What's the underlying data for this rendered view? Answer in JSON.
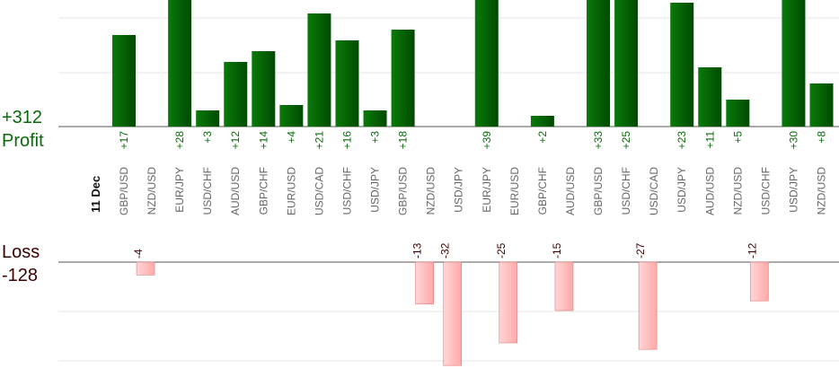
{
  "summary": {
    "profit_total": "+312",
    "profit_label": "Profit",
    "loss_label": "Loss",
    "loss_total": "-128"
  },
  "chart_data": {
    "type": "bar",
    "date_label": "11 Dec",
    "categories": [
      "GBP/USD",
      "NZD/USD",
      "EUR/JPY",
      "USD/CHF",
      "AUD/USD",
      "GBP/CHF",
      "EUR/USD",
      "USD/CAD",
      "USD/CHF",
      "USD/JPY",
      "GBP/USD",
      "NZD/USD",
      "USD/JPY",
      "EUR/JPY",
      "EUR/USD",
      "GBP/CHF",
      "AUD/USD",
      "GBP/USD",
      "USD/CHF",
      "USD/CAD",
      "USD/JPY",
      "AUD/USD",
      "NZD/USD",
      "USD/CHF",
      "USD/JPY",
      "NZD/USD"
    ],
    "series": [
      {
        "values": [
          17,
          -4,
          28,
          3,
          12,
          14,
          4,
          21,
          16,
          3,
          18,
          -13,
          -32,
          39,
          -25,
          2,
          -15,
          33,
          25,
          -27,
          23,
          11,
          5,
          -12,
          30,
          8
        ]
      }
    ],
    "value_labels": [
      "+17",
      "-4",
      "+28",
      "+3",
      "+12",
      "+14",
      "+4",
      "+21",
      "+16",
      "+3",
      "+18",
      "-13",
      "-32",
      "+39",
      "-25",
      "+2",
      "-15",
      "+33",
      "+25",
      "-27",
      "+23",
      "+11",
      "+5",
      "-12",
      "+30",
      "+8"
    ],
    "profit_ylim": [
      0,
      23
    ],
    "loss_ylim": [
      -32,
      0
    ],
    "grid": true,
    "colors": {
      "profit_bar": "#0f6b0f",
      "profit_bar_dark": "#004400",
      "profit_text": "#0a6a0a",
      "loss_bar": "#ffbcbc",
      "loss_bar_edge": "#e07a7a",
      "loss_text": "#3a0000",
      "axis": "#555555",
      "grid": "#e6e6e6",
      "category_text": "#666666"
    }
  }
}
